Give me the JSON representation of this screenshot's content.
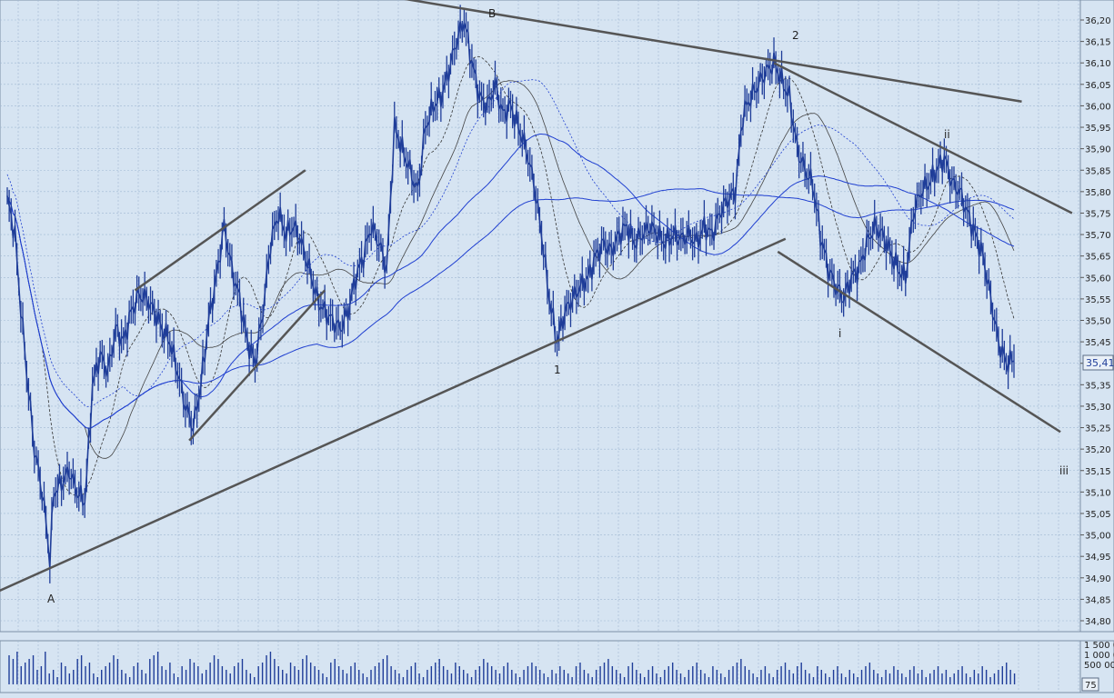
{
  "colors": {
    "background": "#d6e4f2",
    "grid": "#9fb8d2",
    "price": "#1f3d99",
    "moving_average": "#1f3fd0",
    "trendline": "#555555",
    "volume": "#1f3d99",
    "axis_text": "#222222"
  },
  "chart_data": [
    {
      "type": "candlestick",
      "title": "",
      "xlabel": "",
      "ylabel": "",
      "ylim": [
        34.8,
        36.25
      ],
      "grid": true,
      "yticks": [
        "34,80",
        "34,85",
        "34,90",
        "34,95",
        "35,00",
        "35,05",
        "35,10",
        "35,15",
        "35,20",
        "35,25",
        "35,30",
        "35,35",
        "35,40",
        "35,45",
        "35,50",
        "35,55",
        "35,60",
        "35,65",
        "35,70",
        "35,75",
        "35,80",
        "35,85",
        "35,90",
        "35,95",
        "36,00",
        "36,05",
        "36,10",
        "36,15",
        "36,20"
      ],
      "last_price_label": "35,41",
      "price_path": [
        [
          0,
          35.78
        ],
        [
          2,
          35.7
        ],
        [
          3,
          35.58
        ],
        [
          5,
          35.38
        ],
        [
          7,
          35.2
        ],
        [
          9,
          35.1
        ],
        [
          10,
          35.03
        ],
        [
          11,
          34.94
        ],
        [
          12,
          35.1
        ],
        [
          14,
          35.12
        ],
        [
          16,
          35.15
        ],
        [
          18,
          35.1
        ],
        [
          20,
          35.08
        ],
        [
          21,
          35.2
        ],
        [
          22,
          35.35
        ],
        [
          24,
          35.42
        ],
        [
          26,
          35.38
        ],
        [
          28,
          35.48
        ],
        [
          30,
          35.45
        ],
        [
          32,
          35.52
        ],
        [
          34,
          35.56
        ],
        [
          36,
          35.55
        ],
        [
          38,
          35.52
        ],
        [
          40,
          35.48
        ],
        [
          42,
          35.45
        ],
        [
          44,
          35.38
        ],
        [
          46,
          35.3
        ],
        [
          48,
          35.25
        ],
        [
          50,
          35.35
        ],
        [
          52,
          35.5
        ],
        [
          54,
          35.6
        ],
        [
          56,
          35.72
        ],
        [
          58,
          35.62
        ],
        [
          60,
          35.55
        ],
        [
          62,
          35.45
        ],
        [
          64,
          35.4
        ],
        [
          66,
          35.52
        ],
        [
          68,
          35.68
        ],
        [
          70,
          35.75
        ],
        [
          72,
          35.7
        ],
        [
          74,
          35.72
        ],
        [
          76,
          35.68
        ],
        [
          78,
          35.62
        ],
        [
          80,
          35.55
        ],
        [
          82,
          35.52
        ],
        [
          84,
          35.5
        ],
        [
          86,
          35.48
        ],
        [
          88,
          35.52
        ],
        [
          90,
          35.6
        ],
        [
          92,
          35.65
        ],
        [
          94,
          35.72
        ],
        [
          96,
          35.68
        ],
        [
          98,
          35.62
        ],
        [
          100,
          35.95
        ],
        [
          102,
          35.9
        ],
        [
          104,
          35.85
        ],
        [
          106,
          35.8
        ],
        [
          108,
          35.95
        ],
        [
          110,
          36.0
        ],
        [
          112,
          36.02
        ],
        [
          114,
          36.08
        ],
        [
          116,
          36.15
        ],
        [
          118,
          36.2
        ],
        [
          120,
          36.1
        ],
        [
          122,
          36.02
        ],
        [
          124,
          36.0
        ],
        [
          126,
          36.05
        ],
        [
          128,
          35.98
        ],
        [
          130,
          36.0
        ],
        [
          132,
          35.95
        ],
        [
          134,
          35.9
        ],
        [
          136,
          35.82
        ],
        [
          138,
          35.7
        ],
        [
          140,
          35.55
        ],
        [
          142,
          35.45
        ],
        [
          144,
          35.52
        ],
        [
          146,
          35.55
        ],
        [
          148,
          35.58
        ],
        [
          150,
          35.6
        ],
        [
          152,
          35.65
        ],
        [
          154,
          35.68
        ],
        [
          156,
          35.66
        ],
        [
          158,
          35.7
        ],
        [
          160,
          35.72
        ],
        [
          162,
          35.68
        ],
        [
          164,
          35.7
        ],
        [
          166,
          35.72
        ],
        [
          168,
          35.7
        ],
        [
          170,
          35.68
        ],
        [
          172,
          35.7
        ],
        [
          174,
          35.69
        ],
        [
          176,
          35.7
        ],
        [
          178,
          35.68
        ],
        [
          180,
          35.72
        ],
        [
          182,
          35.7
        ],
        [
          184,
          35.75
        ],
        [
          186,
          35.78
        ],
        [
          188,
          35.8
        ],
        [
          190,
          35.98
        ],
        [
          192,
          36.02
        ],
        [
          194,
          36.05
        ],
        [
          196,
          36.08
        ],
        [
          198,
          36.1
        ],
        [
          200,
          36.06
        ],
        [
          202,
          36.02
        ],
        [
          204,
          35.9
        ],
        [
          206,
          35.85
        ],
        [
          208,
          35.82
        ],
        [
          210,
          35.7
        ],
        [
          212,
          35.62
        ],
        [
          214,
          35.58
        ],
        [
          216,
          35.55
        ],
        [
          218,
          35.6
        ],
        [
          220,
          35.62
        ],
        [
          222,
          35.68
        ],
        [
          224,
          35.72
        ],
        [
          226,
          35.7
        ],
        [
          228,
          35.66
        ],
        [
          230,
          35.62
        ],
        [
          232,
          35.6
        ],
        [
          234,
          35.75
        ],
        [
          236,
          35.8
        ],
        [
          238,
          35.82
        ],
        [
          240,
          35.85
        ],
        [
          242,
          35.88
        ],
        [
          244,
          35.82
        ],
        [
          246,
          35.8
        ],
        [
          248,
          35.75
        ],
        [
          250,
          35.7
        ],
        [
          252,
          35.65
        ],
        [
          254,
          35.55
        ],
        [
          256,
          35.45
        ],
        [
          258,
          35.4
        ],
        [
          260,
          35.41
        ]
      ],
      "annotations": [
        "A",
        "B",
        "1",
        "2",
        "i",
        "ii",
        "iii"
      ]
    },
    {
      "type": "bar",
      "title": "Volume",
      "yticks": [
        "1 500 0",
        "1 000 0",
        "500 00"
      ],
      "corner_label": "75",
      "values": [
        8,
        7,
        9,
        5,
        6,
        7,
        8,
        4,
        5,
        9,
        3,
        4,
        2,
        6,
        5,
        3,
        4,
        7,
        8,
        5,
        6,
        3,
        2,
        4,
        5,
        6,
        8,
        7,
        4,
        3,
        2,
        5,
        6,
        4,
        3,
        7,
        8,
        9,
        5,
        4,
        6,
        3,
        2,
        5,
        4,
        7,
        6,
        5,
        3,
        4,
        6,
        8,
        7,
        5,
        4,
        3,
        5,
        6,
        7,
        4,
        3,
        2,
        5,
        6,
        8,
        9,
        7,
        5,
        4,
        3,
        6,
        5,
        4,
        7,
        8,
        6,
        5,
        4,
        3,
        2,
        6,
        7,
        5,
        4,
        3,
        5,
        6,
        4,
        3,
        2,
        4,
        5,
        6,
        7,
        8,
        5,
        4,
        3,
        2,
        4,
        5,
        6,
        3,
        2,
        4,
        5,
        6,
        7,
        5,
        4,
        3,
        6,
        5,
        4,
        3,
        2,
        4,
        5,
        7,
        6,
        5,
        4,
        3,
        5,
        6,
        4,
        3,
        2,
        4,
        5,
        6,
        5,
        4,
        3,
        2,
        4,
        3,
        5,
        4,
        3,
        2,
        5,
        6,
        4,
        3,
        2,
        4,
        5,
        6,
        7,
        5,
        4,
        3,
        2,
        5,
        6,
        4,
        3,
        2,
        4,
        5,
        3,
        2,
        4,
        5,
        6,
        4,
        3,
        2,
        4,
        5,
        6,
        4,
        3,
        2,
        5,
        4,
        3,
        2,
        4,
        5,
        6,
        7,
        5,
        4,
        3,
        2,
        4,
        5,
        3,
        2,
        4,
        5,
        6,
        4,
        3,
        5,
        6,
        4,
        3,
        2,
        5,
        4,
        3,
        2,
        4,
        5,
        3,
        2,
        4,
        3,
        2,
        4,
        5,
        6,
        4,
        3,
        2,
        4,
        3,
        5,
        4,
        3,
        2,
        4,
        5,
        3,
        4,
        2,
        3,
        4,
        5,
        3,
        4,
        2,
        3,
        4,
        5,
        3,
        2,
        4,
        3,
        5,
        4,
        2,
        3,
        4,
        5,
        6,
        4,
        3
      ]
    }
  ],
  "annotations": {
    "A": "A",
    "B": "B",
    "1": "1",
    "2": "2",
    "i": "i",
    "ii": "ii",
    "iii": "iii"
  }
}
